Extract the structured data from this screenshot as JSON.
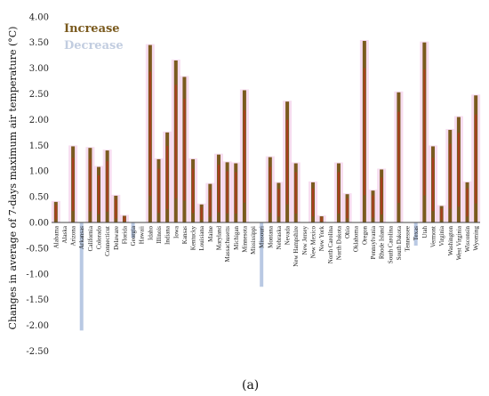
{
  "chart_data": {
    "type": "bar",
    "ylabel": "Changes in average of 7-days maximum air temperature (°C)",
    "panel_label": "(a)",
    "ylim": [
      -2.75,
      4.0
    ],
    "yticks": [
      "4.00",
      "3.50",
      "3.00",
      "2.50",
      "2.00",
      "1.50",
      "1.00",
      "0.50",
      "0.00",
      "-0.50",
      "-1.00",
      "-1.50",
      "-2.00",
      "-2.50"
    ],
    "ytick_values": [
      4.0,
      3.5,
      3.0,
      2.5,
      2.0,
      1.5,
      1.0,
      0.5,
      0.0,
      -0.5,
      -1.0,
      -1.5,
      -2.0,
      -2.5
    ],
    "legend": {
      "placement": "top-left",
      "increase": "Increase",
      "decrease": "Decrease"
    },
    "colors": {
      "increase": "#7a5a1e",
      "increase_fill": "#b33a1f",
      "decrease": "#b9c9e3",
      "glow": "#f2c6e6",
      "axis": "#444444"
    },
    "categories": [
      "Alabama",
      "Alaska",
      "Arizona",
      "Arkansas",
      "California",
      "Colorado",
      "Connecticut",
      "Delaware",
      "Florida",
      "Georgia",
      "Hawaii",
      "Idaho",
      "Illinois",
      "Indiana",
      "Iowa",
      "Kansas",
      "Kentucky",
      "Louisiana",
      "Maine",
      "Maryland",
      "Massachusetts",
      "Michigan",
      "Minnesota",
      "Mississippi",
      "Missouri",
      "Montana",
      "Nebraska",
      "Nevada",
      "New Hampshire",
      "New Jersey",
      "New Mexico",
      "New York",
      "North Carolina",
      "North Dakota",
      "Ohio",
      "Oklahoma",
      "Oregon",
      "Pennsylvania",
      "Rhode Island",
      "South Carolina",
      "South Dakota",
      "Tennessee",
      "Texas",
      "Utah",
      "Vermont",
      "Virginia",
      "Washington",
      "West Virginia",
      "Wisconsin",
      "Wyoming"
    ],
    "values": [
      0.4,
      0.0,
      1.48,
      -2.1,
      1.45,
      1.08,
      1.4,
      0.52,
      0.13,
      -0.3,
      0.0,
      3.45,
      1.23,
      1.75,
      3.15,
      2.83,
      1.23,
      0.35,
      0.75,
      1.32,
      1.17,
      1.15,
      2.57,
      0.0,
      -1.25,
      1.27,
      0.77,
      2.35,
      1.15,
      0.0,
      0.78,
      0.12,
      0.0,
      1.15,
      0.55,
      0.0,
      3.53,
      0.62,
      1.03,
      0.0,
      2.53,
      0.0,
      -0.45,
      3.5,
      1.48,
      0.32,
      1.8,
      2.05,
      0.78,
      2.47
    ]
  }
}
